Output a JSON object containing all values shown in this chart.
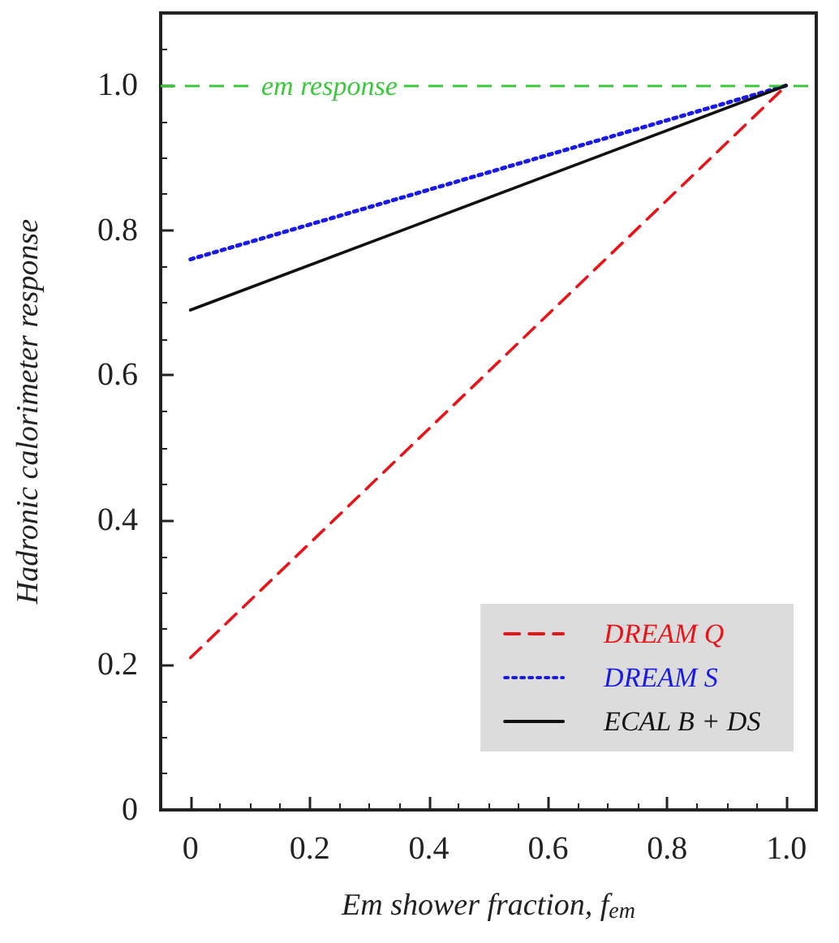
{
  "chart_data": {
    "type": "line",
    "xlabel": "Em shower fraction, f$_{em}$",
    "ylabel": "Hadronic calorimeter response",
    "x": [
      0,
      1
    ],
    "series": [
      {
        "name": "DREAM Q",
        "color": "#e8141a",
        "values": [
          0.21,
          1.0
        ],
        "line_style": "dashed"
      },
      {
        "name": "DREAM S",
        "color": "#1a1ae6",
        "values": [
          0.76,
          1.0
        ],
        "line_style": "dotted"
      },
      {
        "name": "ECAL B + DS",
        "color": "#111111",
        "values": [
          0.69,
          1.0
        ],
        "line_style": "solid"
      }
    ],
    "xlim": [
      -0.05,
      1.05
    ],
    "xticks": [
      0,
      0.2,
      0.4,
      0.6,
      0.8,
      {
        "value": 1,
        "label": "1.0"
      }
    ],
    "ylim": [
      0,
      1.1
    ],
    "yticks": [
      0,
      0.2,
      0.4,
      0.6,
      0.8,
      {
        "value": 1,
        "label": "1.0"
      }
    ],
    "ref_lines": [
      {
        "axis": "y",
        "value": 1,
        "label": "em response",
        "color": "#3cc83c",
        "line_style": "dashed"
      }
    ],
    "grid": false,
    "legend": "bottom right",
    "marker": "none"
  }
}
